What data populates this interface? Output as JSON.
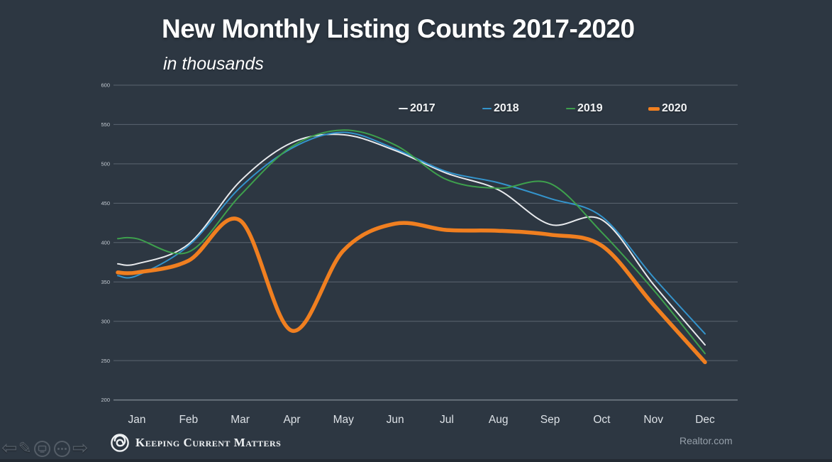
{
  "slide": {
    "title": "New Monthly Listing Counts 2017-2020",
    "subtitle": "in thousands",
    "brand_text": "Keeping Current Matters",
    "source_label": "Realtor.com"
  },
  "chart_data": {
    "type": "line",
    "title": "New Monthly Listing Counts 2017-2020",
    "subtitle": "in thousands",
    "units": "thousands of listings",
    "grid": true,
    "legend_position": "top",
    "ylim": [
      200,
      600
    ],
    "y_ticks": [
      600,
      550,
      500,
      450,
      400,
      350,
      300,
      250,
      200
    ],
    "categories": [
      "Jan",
      "Feb",
      "Mar",
      "Apr",
      "May",
      "Jun",
      "Jul",
      "Aug",
      "Sep",
      "Oct",
      "Nov",
      "Dec"
    ],
    "series": [
      {
        "name": "2017",
        "color": "#e9ebee",
        "width": 2,
        "values": [
          373,
          398,
          478,
          527,
          537,
          517,
          488,
          467,
          423,
          429,
          347,
          270
        ]
      },
      {
        "name": "2018",
        "color": "#3494cc",
        "width": 2,
        "values": [
          358,
          396,
          470,
          520,
          540,
          519,
          490,
          476,
          456,
          433,
          356,
          284
        ]
      },
      {
        "name": "2019",
        "color": "#3ea04d",
        "width": 2,
        "values": [
          405,
          388,
          460,
          522,
          543,
          524,
          480,
          469,
          475,
          413,
          340,
          259
        ]
      },
      {
        "name": "2020",
        "color": "#f07f20",
        "width": 5.5,
        "values": [
          362,
          377,
          428,
          288,
          390,
          424,
          416,
          415,
          410,
          396,
          321,
          248
        ]
      }
    ]
  },
  "presenter_toolbar": {
    "back_glyph": "⇦",
    "pen_glyph": "✎",
    "forward_glyph": "⇨"
  }
}
